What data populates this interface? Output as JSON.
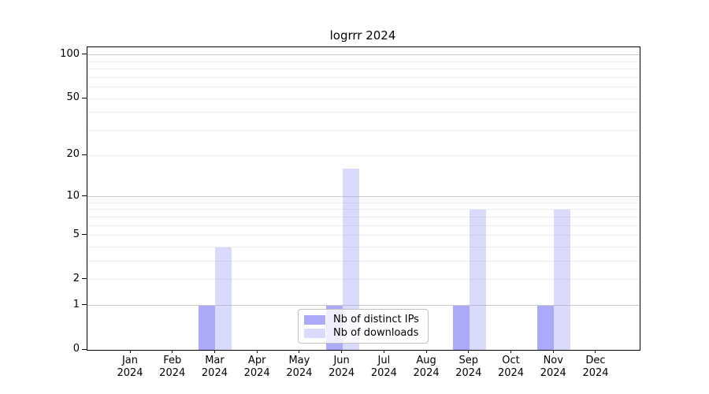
{
  "chart_data": {
    "type": "bar",
    "title": "logrrr 2024",
    "categories": [
      "Jan 2024",
      "Feb 2024",
      "Mar 2024",
      "Apr 2024",
      "May 2024",
      "Jun 2024",
      "Jul 2024",
      "Aug 2024",
      "Sep 2024",
      "Oct 2024",
      "Nov 2024",
      "Dec 2024"
    ],
    "series": [
      {
        "name": "Nb of distinct IPs",
        "color": "#aaaaf8",
        "alpha": 1,
        "values": [
          0,
          0,
          1,
          0,
          0,
          1,
          0,
          0,
          1,
          0,
          1,
          0
        ]
      },
      {
        "name": "Nb of downloads",
        "color": "#aaaaf8",
        "alpha": 0.44,
        "values": [
          0,
          0,
          4,
          0,
          0,
          16,
          0,
          0,
          8,
          0,
          8,
          0
        ]
      }
    ],
    "xlabel": "",
    "ylabel": "",
    "yscale": "log1p",
    "yticks": [
      0,
      1,
      2,
      5,
      10,
      20,
      50,
      100
    ],
    "ylim": [
      0,
      113
    ],
    "grid": {
      "on": true,
      "major_values": [
        1,
        10,
        100
      ],
      "minor_values": [
        2,
        3,
        4,
        5,
        6,
        7,
        8,
        9,
        20,
        30,
        40,
        50,
        60,
        70,
        80,
        90
      ],
      "major_color": "#c8c8c8",
      "minor_color": "#ececec"
    },
    "legend": {
      "position": "lower center",
      "border_color": "#c0c0c0"
    }
  }
}
